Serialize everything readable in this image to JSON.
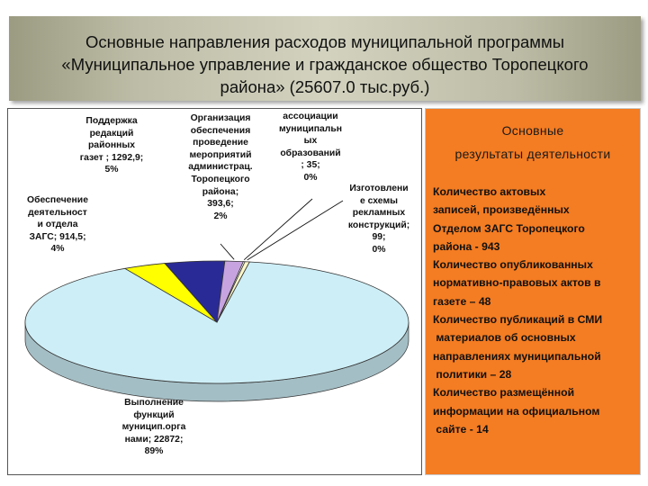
{
  "header": {
    "title_lines": [
      "Основные направления расходов муниципальной программы",
      "«Муниципальное управление и гражданское общество Торопецкого",
      "района» (25607.0 тыс.руб.)"
    ]
  },
  "chart_data": {
    "type": "pie",
    "title": "",
    "slices": [
      {
        "label": "Выполнение функций муниципальных органов",
        "value": 22872,
        "percent": 89,
        "color": "#cdeef6",
        "label_text": "Выполнение\nфункций\nмуницип.орга\nнами; 22872;\n89%"
      },
      {
        "label": "Обеспечение деятельности отдела ЗАГС",
        "value": 914.5,
        "percent": 4,
        "color": "#ffff00",
        "label_text": "Обеспечение\nдеятельност\nи отдела\nЗАГС; 914,5;\n4%"
      },
      {
        "label": "Поддержка редакций районных газет",
        "value": 1292.9,
        "percent": 5,
        "color": "#2a2a96",
        "label_text": "Поддержка\nредакций\nрайонных\nгазет ; 1292,9;\n5%"
      },
      {
        "label": "Организация обеспечения проведения мероприятий администрац. Торопецкого района",
        "value": 393.6,
        "percent": 2,
        "color": "#c7a4e0",
        "label_text": "Организация\nобеспечения\nпроведение\nмероприятий\nадминистрац.\nТоропецкого\nрайона;\n393,6;\n2%"
      },
      {
        "label": "ассоциации муниципальных образований",
        "value": 35,
        "percent": 0,
        "color": "#ffffff",
        "label_text": "ассоциации\nмуниципальн\nых\nобразований\n; 35;\n0%"
      },
      {
        "label": "Изготовление схемы рекламных конструкций",
        "value": 99,
        "percent": 0,
        "color": "#fff7c8",
        "label_text": "Изготовлени\nе схемы\nрекламных\nконструкций;\n99;\n0%"
      }
    ]
  },
  "results": {
    "title_lines": [
      "Основные",
      "результаты деятельности"
    ],
    "lines": [
      "Количество актовых",
      "записей, произведённых",
      "Отделом ЗАГС Торопецкого",
      "района - 943",
      "Количество опубликованных",
      "нормативно-правовых актов в",
      "газете – 48",
      "Количество публикаций в СМИ",
      " материалов об основных",
      "направлениях муниципальной",
      " политики – 28",
      "Количество размещённой",
      "информации на официальном",
      " сайте - 14"
    ]
  }
}
